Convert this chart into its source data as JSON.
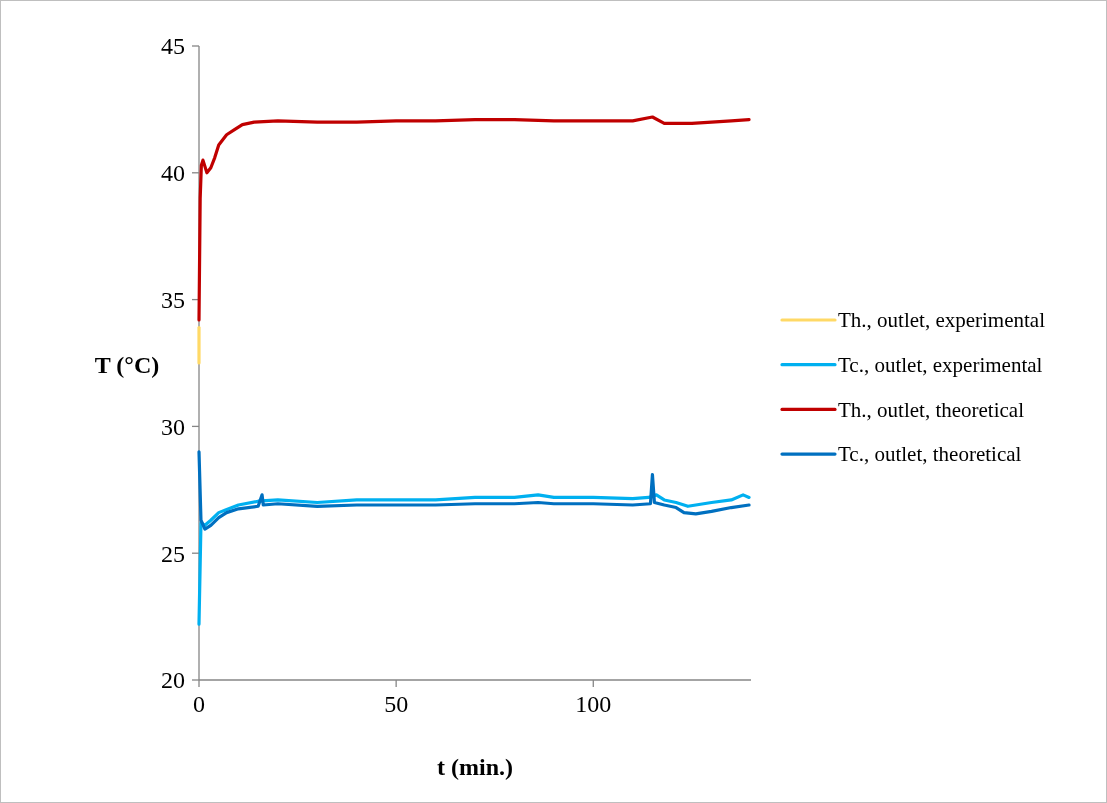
{
  "chart_data": {
    "type": "line",
    "xlabel": "t (min.)",
    "ylabel": "T (°C)",
    "xlim": [
      0,
      140
    ],
    "xticks": [
      0,
      50,
      100
    ],
    "ylim": [
      20,
      45
    ],
    "yticks": [
      20,
      25,
      30,
      35,
      40,
      45
    ],
    "grid": false,
    "legend": "right",
    "marker": "none",
    "line_style": "solid",
    "series": [
      {
        "name": "Th., outlet, experimental",
        "color": "#ffd966",
        "x": [
          0,
          0
        ],
        "values": [
          32.5,
          33.9
        ]
      },
      {
        "name": "Tc., outlet, experimental",
        "color": "#00b0f0",
        "x": [
          0,
          0.5,
          1.5,
          3,
          5,
          10,
          15,
          20,
          30,
          40,
          50,
          60,
          70,
          80,
          86,
          90,
          100,
          110,
          114,
          116,
          118,
          121,
          124,
          130,
          135,
          138,
          139.5
        ],
        "values": [
          22.2,
          26.2,
          26.1,
          26.3,
          26.6,
          26.9,
          27.05,
          27.1,
          27.0,
          27.1,
          27.1,
          27.1,
          27.2,
          27.2,
          27.3,
          27.2,
          27.2,
          27.15,
          27.2,
          27.3,
          27.1,
          27.0,
          26.85,
          27.0,
          27.1,
          27.3,
          27.2
        ]
      },
      {
        "name": "Th., outlet, theoretical",
        "color": "#c00000",
        "x": [
          0,
          0.3,
          0.6,
          1,
          2,
          3,
          4,
          5,
          7,
          9,
          11,
          14,
          20,
          30,
          40,
          50,
          60,
          70,
          80,
          90,
          100,
          110,
          115,
          118,
          125,
          135,
          139.5
        ],
        "values": [
          34.2,
          39,
          40.3,
          40.5,
          40.0,
          40.2,
          40.6,
          41.1,
          41.5,
          41.7,
          41.9,
          42.0,
          42.05,
          42.0,
          42.0,
          42.05,
          42.05,
          42.1,
          42.1,
          42.05,
          42.05,
          42.05,
          42.2,
          41.95,
          41.95,
          42.05,
          42.1
        ]
      },
      {
        "name": "Tc., outlet, theoretical",
        "color": "#0070c0",
        "x": [
          0,
          0.5,
          1.5,
          3,
          5,
          7,
          10,
          15,
          16,
          16.3,
          20,
          30,
          40,
          50,
          60,
          70,
          80,
          86,
          90,
          100,
          110,
          114.5,
          115,
          115.5,
          118,
          121,
          123,
          126,
          130,
          135,
          139.5
        ],
        "values": [
          29.0,
          26.3,
          25.95,
          26.1,
          26.4,
          26.6,
          26.75,
          26.85,
          27.3,
          26.9,
          26.95,
          26.85,
          26.9,
          26.9,
          26.9,
          26.95,
          26.95,
          27.0,
          26.95,
          26.95,
          26.9,
          26.95,
          28.1,
          27.0,
          26.9,
          26.8,
          26.6,
          26.55,
          26.65,
          26.8,
          26.9
        ]
      }
    ]
  }
}
